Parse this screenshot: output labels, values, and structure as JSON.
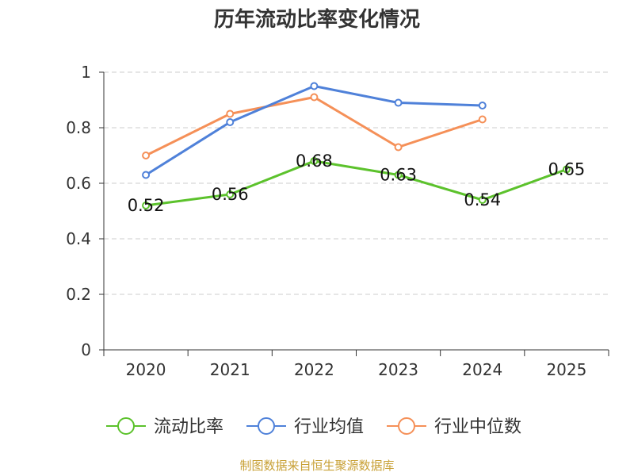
{
  "chart_data": {
    "type": "line",
    "title": "历年流动比率变化情况",
    "categories": [
      "2020",
      "2021",
      "2022",
      "2023",
      "2024",
      "2025"
    ],
    "ylim": [
      0,
      1
    ],
    "yticks": [
      "0",
      "0.2",
      "0.4",
      "0.6",
      "0.8",
      "1"
    ],
    "ytick_values": [
      0,
      0.2,
      0.4,
      0.6,
      0.8,
      1
    ],
    "grid": true,
    "legend_position": "bottom",
    "series": [
      {
        "name": "流动比率",
        "color": "#5cc22c",
        "values": [
          0.52,
          0.56,
          0.68,
          0.63,
          0.54,
          0.65
        ],
        "labels": [
          "0.52",
          "0.56",
          "0.68",
          "0.63",
          "0.54",
          "0.65"
        ]
      },
      {
        "name": "行业均值",
        "color": "#4f81d9",
        "values": [
          0.63,
          0.82,
          0.95,
          0.89,
          0.88,
          null
        ]
      },
      {
        "name": "行业中位数",
        "color": "#f59058",
        "values": [
          0.7,
          0.85,
          0.91,
          0.73,
          0.83,
          null
        ]
      }
    ]
  },
  "footer": {
    "source": "制图数据来自恒生聚源数据库",
    "color": "#c8a035"
  }
}
